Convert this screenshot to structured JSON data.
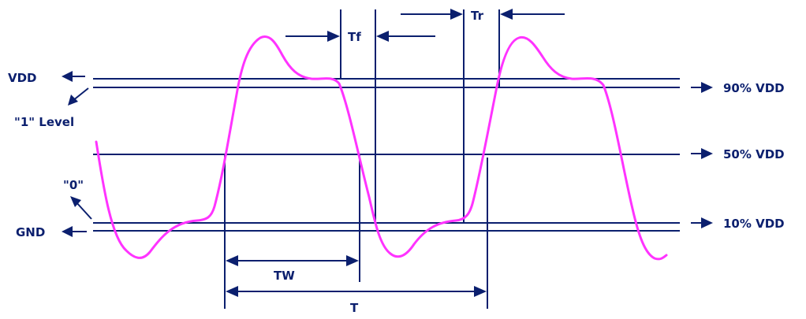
{
  "diagram": {
    "colors": {
      "ink": "#0b1f6e",
      "waveform": "#ff33ff",
      "background": "#ffffff"
    },
    "labels": {
      "vdd": "VDD",
      "one_level": "\"1\" Level",
      "zero": "\"0\"",
      "gnd": "GND",
      "vdd_90": "90% VDD",
      "vdd_50": "50% VDD",
      "vdd_10": "10% VDD",
      "tf": "Tf",
      "tr": "Tr",
      "tw": "TW",
      "t": "T"
    }
  }
}
